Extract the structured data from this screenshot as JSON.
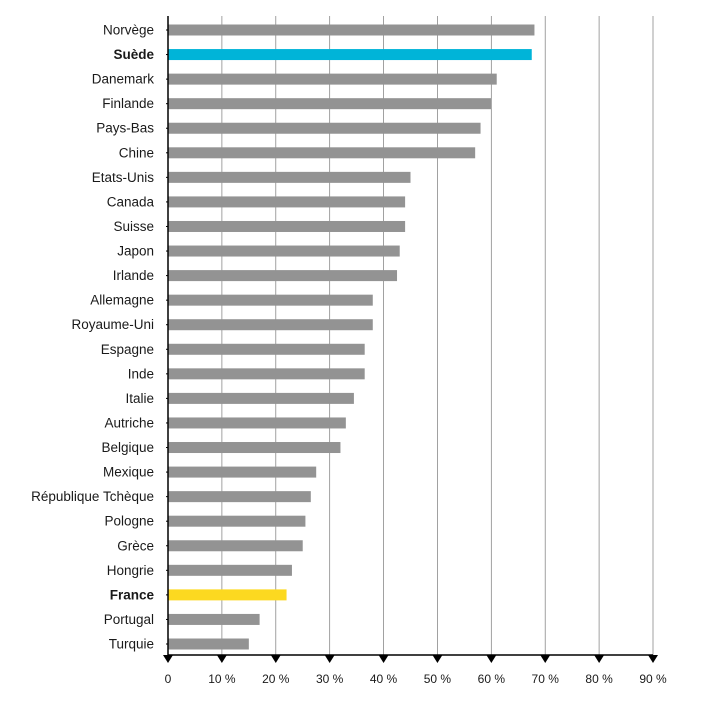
{
  "chart_data": {
    "type": "bar",
    "orientation": "horizontal",
    "categories": [
      "Norvège",
      "Suède",
      "Danemark",
      "Finlande",
      "Pays-Bas",
      "Chine",
      "Etats-Unis",
      "Canada",
      "Suisse",
      "Japon",
      "Irlande",
      "Allemagne",
      "Royaume-Uni",
      "Espagne",
      "Inde",
      "Italie",
      "Autriche",
      "Belgique",
      "Mexique",
      "République Tchèque",
      "Pologne",
      "Grèce",
      "Hongrie",
      "France",
      "Portugal",
      "Turquie"
    ],
    "values": [
      68,
      67.5,
      61,
      60,
      58,
      57,
      45,
      44,
      44,
      43,
      42.5,
      38,
      38,
      36.5,
      36.5,
      34.5,
      33,
      32,
      27.5,
      26.5,
      25.5,
      25,
      23,
      22,
      17,
      15
    ],
    "highlight": {
      "Suède": "#00b4d8",
      "France": "#fcd920"
    },
    "bold_categories": [
      "Suède",
      "France"
    ],
    "bar_color": "#939393",
    "xlim": [
      0,
      90
    ],
    "xticks": [
      0,
      10,
      20,
      30,
      40,
      50,
      60,
      70,
      80,
      90
    ],
    "xtick_labels": [
      "0",
      "10 %",
      "20 %",
      "30 %",
      "40 %",
      "50 %",
      "60 %",
      "70 %",
      "80 %",
      "90 %"
    ],
    "grid": true,
    "title": "",
    "xlabel": "",
    "ylabel": ""
  }
}
